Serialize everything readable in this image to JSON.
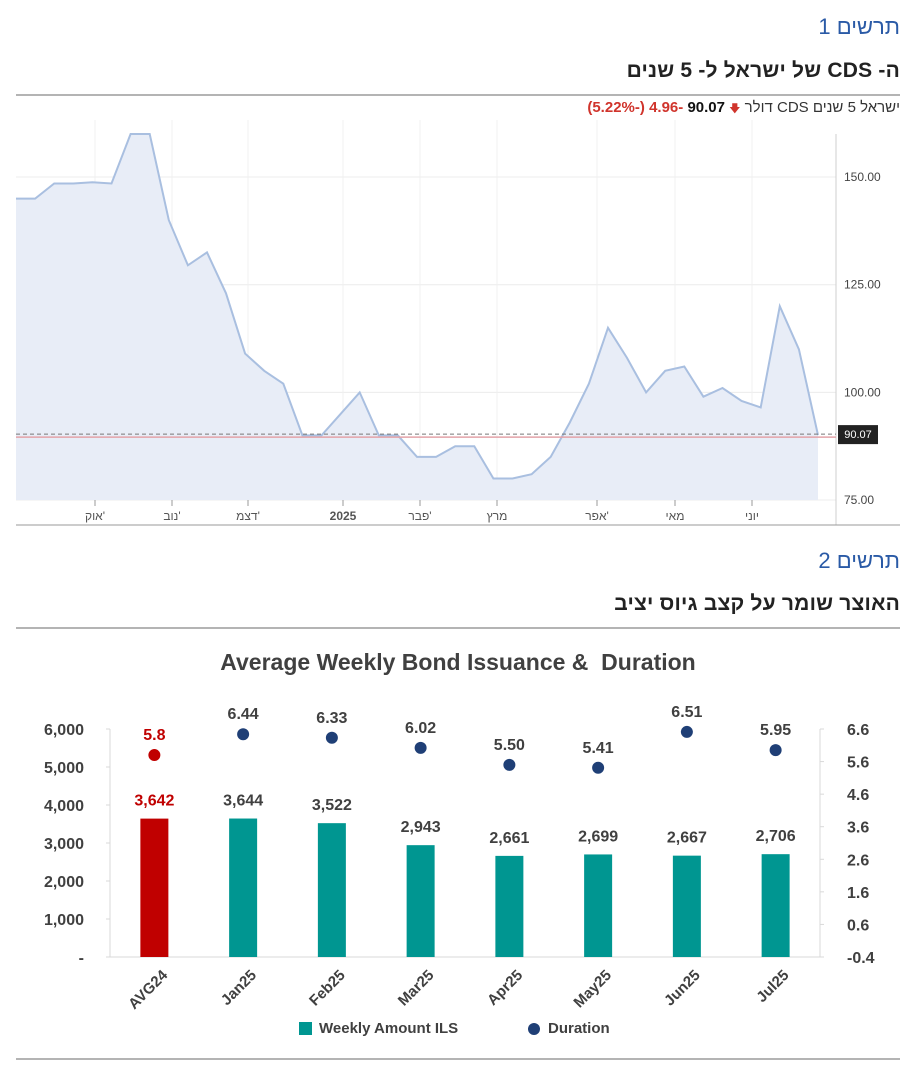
{
  "fig1": {
    "label": "תרשים 1",
    "title": "ה- CDS של ישראל ל- 5 שנים",
    "ticker": {
      "name": "ישראל 5 שנים CDS דולר",
      "arrow": "🡇",
      "price": "90.07",
      "change": "-4.96",
      "change_pct": "(-5.22%)"
    }
  },
  "fig2": {
    "label": "תרשים 2",
    "title": "האוצר שומר על קצב גיוס יציב"
  },
  "chart_data": [
    {
      "type": "area",
      "title": "",
      "x_ticks": [
        "אוק'",
        "נוב'",
        "דצמ'",
        "2025",
        "פבר'",
        "מרץ",
        "אפר'",
        "מאי",
        "יוני"
      ],
      "y_ticks": [
        "150.00",
        "125.00",
        "100.00",
        "75.00"
      ],
      "ylim": [
        75,
        160
      ],
      "y_axis_side": "right",
      "last_value_label": "90.07",
      "reference_line": 90.07,
      "values": [
        145,
        145,
        148.5,
        148.5,
        148.8,
        148.5,
        160,
        160,
        140,
        129.5,
        132.5,
        123,
        109,
        105,
        102,
        90,
        90,
        95,
        100,
        90,
        90,
        85,
        85,
        87.5,
        87.5,
        80,
        80,
        81,
        85,
        93,
        102,
        115,
        108,
        100,
        105,
        106,
        99,
        101,
        98,
        96.5,
        120,
        110,
        90.07
      ],
      "colors": {
        "line": "#a9bfe0",
        "fill": "#e8edf7",
        "reference": "#e3a2a8"
      }
    },
    {
      "type": "bar",
      "title": "Average Weekly Bond Issuance &  Duration",
      "categories": [
        "AVG24",
        "Jan25",
        "Feb25",
        "Mar25",
        "Apr25",
        "May25",
        "Jun25",
        "Jul25"
      ],
      "series": [
        {
          "name": "Weekly Amount ILS",
          "type": "bar",
          "axis": "left",
          "values": [
            3642,
            3644,
            3522,
            2943,
            2661,
            2699,
            2667,
            2706
          ],
          "labels": [
            "3,642",
            "3,644",
            "3,522",
            "2,943",
            "2,661",
            "2,699",
            "2,667",
            "2,706"
          ]
        },
        {
          "name": "Duration",
          "type": "scatter",
          "axis": "right",
          "values": [
            5.8,
            6.44,
            6.33,
            6.02,
            5.5,
            5.41,
            6.51,
            5.95
          ],
          "labels": [
            "5.8",
            "6.44",
            "6.33",
            "6.02",
            "5.50",
            "5.41",
            "6.51",
            "5.95"
          ]
        }
      ],
      "y_left_ticks": [
        "-",
        "1,000",
        "2,000",
        "3,000",
        "4,000",
        "5,000",
        "6,000"
      ],
      "y_left_range": [
        0,
        6000
      ],
      "y_right_ticks": [
        "-0.4",
        "0.6",
        "1.6",
        "2.6",
        "3.6",
        "4.6",
        "5.6",
        "6.6"
      ],
      "y_right_range": [
        -0.4,
        6.6
      ],
      "legend_position": "bottom",
      "colors": {
        "bar": "#009691",
        "highlight": "#c00000",
        "dot": "#1f3f76"
      }
    }
  ]
}
